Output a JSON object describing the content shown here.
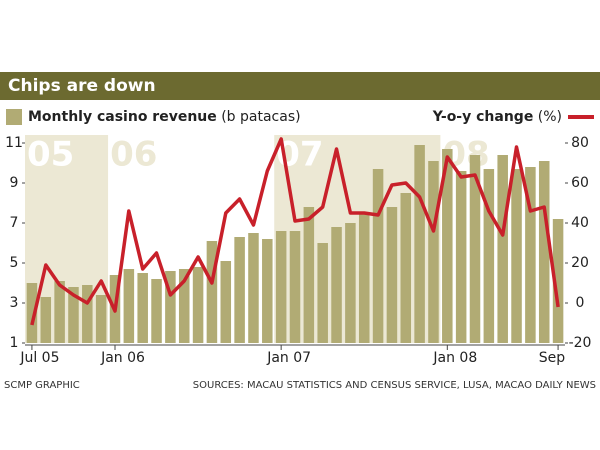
{
  "chart_data": {
    "type": "bar_line",
    "title": "Chips are down",
    "source_left": "SCMP GRAPHIC",
    "source_right": "SOURCES: MACAU STATISTICS AND CENSUS SERVICE, LUSA, MACAO DAILY NEWS",
    "year_labels": [
      "05",
      "06",
      "07",
      "08"
    ],
    "categories": [
      "Jul 05",
      null,
      null,
      null,
      null,
      null,
      "Jan 06",
      null,
      null,
      null,
      null,
      null,
      null,
      null,
      null,
      null,
      null,
      null,
      "Jan 07",
      null,
      null,
      null,
      null,
      null,
      null,
      null,
      null,
      null,
      null,
      null,
      "Jan 08",
      null,
      null,
      null,
      null,
      null,
      null,
      null,
      "Sep"
    ],
    "series": [
      {
        "name": "Monthly casino revenue",
        "unit": "(b patacas)",
        "color": "#b1ab74",
        "values": [
          4.0,
          3.3,
          4.1,
          3.8,
          3.9,
          3.4,
          4.4,
          4.7,
          4.5,
          4.2,
          4.6,
          4.7,
          4.8,
          6.1,
          5.1,
          6.3,
          6.5,
          6.2,
          6.6,
          6.6,
          7.8,
          6.0,
          6.8,
          7.0,
          7.5,
          9.7,
          7.8,
          8.5,
          10.9,
          10.1,
          10.7,
          9.6,
          10.4,
          9.7,
          10.4,
          9.7,
          9.8,
          10.1,
          7.2
        ]
      },
      {
        "name": "Y-o-y change",
        "unit": "(%)",
        "color": "#c8202a",
        "axis": "y2",
        "values": [
          -11,
          19,
          9,
          4,
          0,
          11,
          -4,
          46,
          17,
          25,
          4,
          11,
          23,
          10,
          45,
          52,
          39,
          66,
          82,
          41,
          42,
          48,
          77,
          45,
          45,
          44,
          59,
          60,
          53,
          36,
          73,
          63,
          64,
          46,
          34,
          78,
          46,
          48,
          -2
        ]
      }
    ],
    "ylim": [
      1,
      11
    ],
    "yticks": [
      1,
      3,
      5,
      7,
      9,
      11
    ],
    "y2lim": [
      -20,
      80
    ],
    "y2ticks": [
      -20,
      0,
      20,
      40,
      60,
      80
    ]
  }
}
